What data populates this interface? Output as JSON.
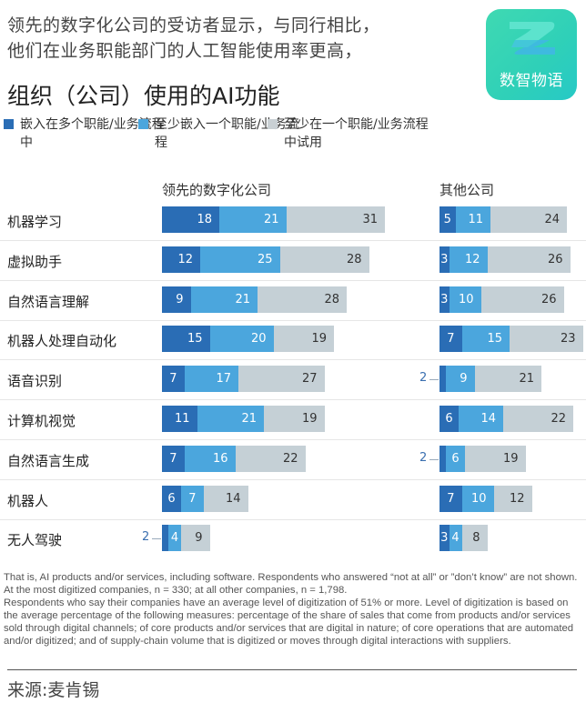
{
  "header": {
    "subtitle_lines": [
      "领先的数字化公司的受访者显示，与同行相比，",
      "他们在业务职能部门的人工智能使用率更高，"
    ],
    "title": "组织（公司）使用的AI功能"
  },
  "logo": {
    "text": "数智物语",
    "icon": "z-logo-icon"
  },
  "colors": {
    "embedded_multiple": "#2a6db5",
    "embedded_one": "#4ba6dd",
    "piloted": "#c5d0d6"
  },
  "chart_data": {
    "type": "bar",
    "orientation": "horizontal-stacked",
    "title": "组织（公司）使用的AI功能",
    "legend": {
      "placement": "top",
      "entries": [
        "嵌入在多个职能/业务流程中",
        "至少嵌入一个职能/业务流程",
        "至少在一个职能/业务流程中试用"
      ]
    },
    "categories": [
      "机器学习",
      "虚拟助手",
      "自然语言理解",
      "机器人处理自动化",
      "语音识别",
      "计算机视觉",
      "自然语言生成",
      "机器人",
      "无人驾驶"
    ],
    "panels": [
      {
        "name": "领先的数字化公司",
        "series": [
          {
            "name": "嵌入在多个职能/业务流程中",
            "values": [
              18,
              12,
              9,
              15,
              7,
              11,
              7,
              6,
              2
            ]
          },
          {
            "name": "至少嵌入一个职能/业务流程",
            "values": [
              21,
              25,
              21,
              20,
              17,
              21,
              16,
              7,
              4
            ]
          },
          {
            "name": "至少在一个职能/业务流程中试用",
            "values": [
              31,
              28,
              28,
              19,
              27,
              19,
              22,
              14,
              9
            ]
          }
        ]
      },
      {
        "name": "其他公司",
        "series": [
          {
            "name": "嵌入在多个职能/业务流程中",
            "values": [
              5,
              3,
              3,
              7,
              2,
              6,
              2,
              7,
              3
            ]
          },
          {
            "name": "至少嵌入一个职能/业务流程",
            "values": [
              11,
              12,
              10,
              15,
              9,
              14,
              6,
              10,
              4
            ]
          },
          {
            "name": "至少在一个职能/业务流程中试用",
            "values": [
              24,
              26,
              26,
              23,
              21,
              22,
              19,
              12,
              8
            ]
          }
        ]
      }
    ],
    "unit": "%"
  },
  "footnotes": [
    "That is, AI products and/or services, including software. Respondents who answered “not at all” or ”don’t know” are not shown. At the most digitized companies, n = 330; at all other companies, n = 1,798.",
    "Respondents who say their companies have an average level of digitization of 51% or more. Level of digitization is based on the average percentage of the following measures: percentage of the share of sales that come from products and/or services sold through digital channels; of core products and/or services that are digital in nature; of core operations that are automated and/or digitized; and of supply-chain volume that is digitized or moves through digital interactions with suppliers."
  ],
  "source": "来源:麦肯锡"
}
